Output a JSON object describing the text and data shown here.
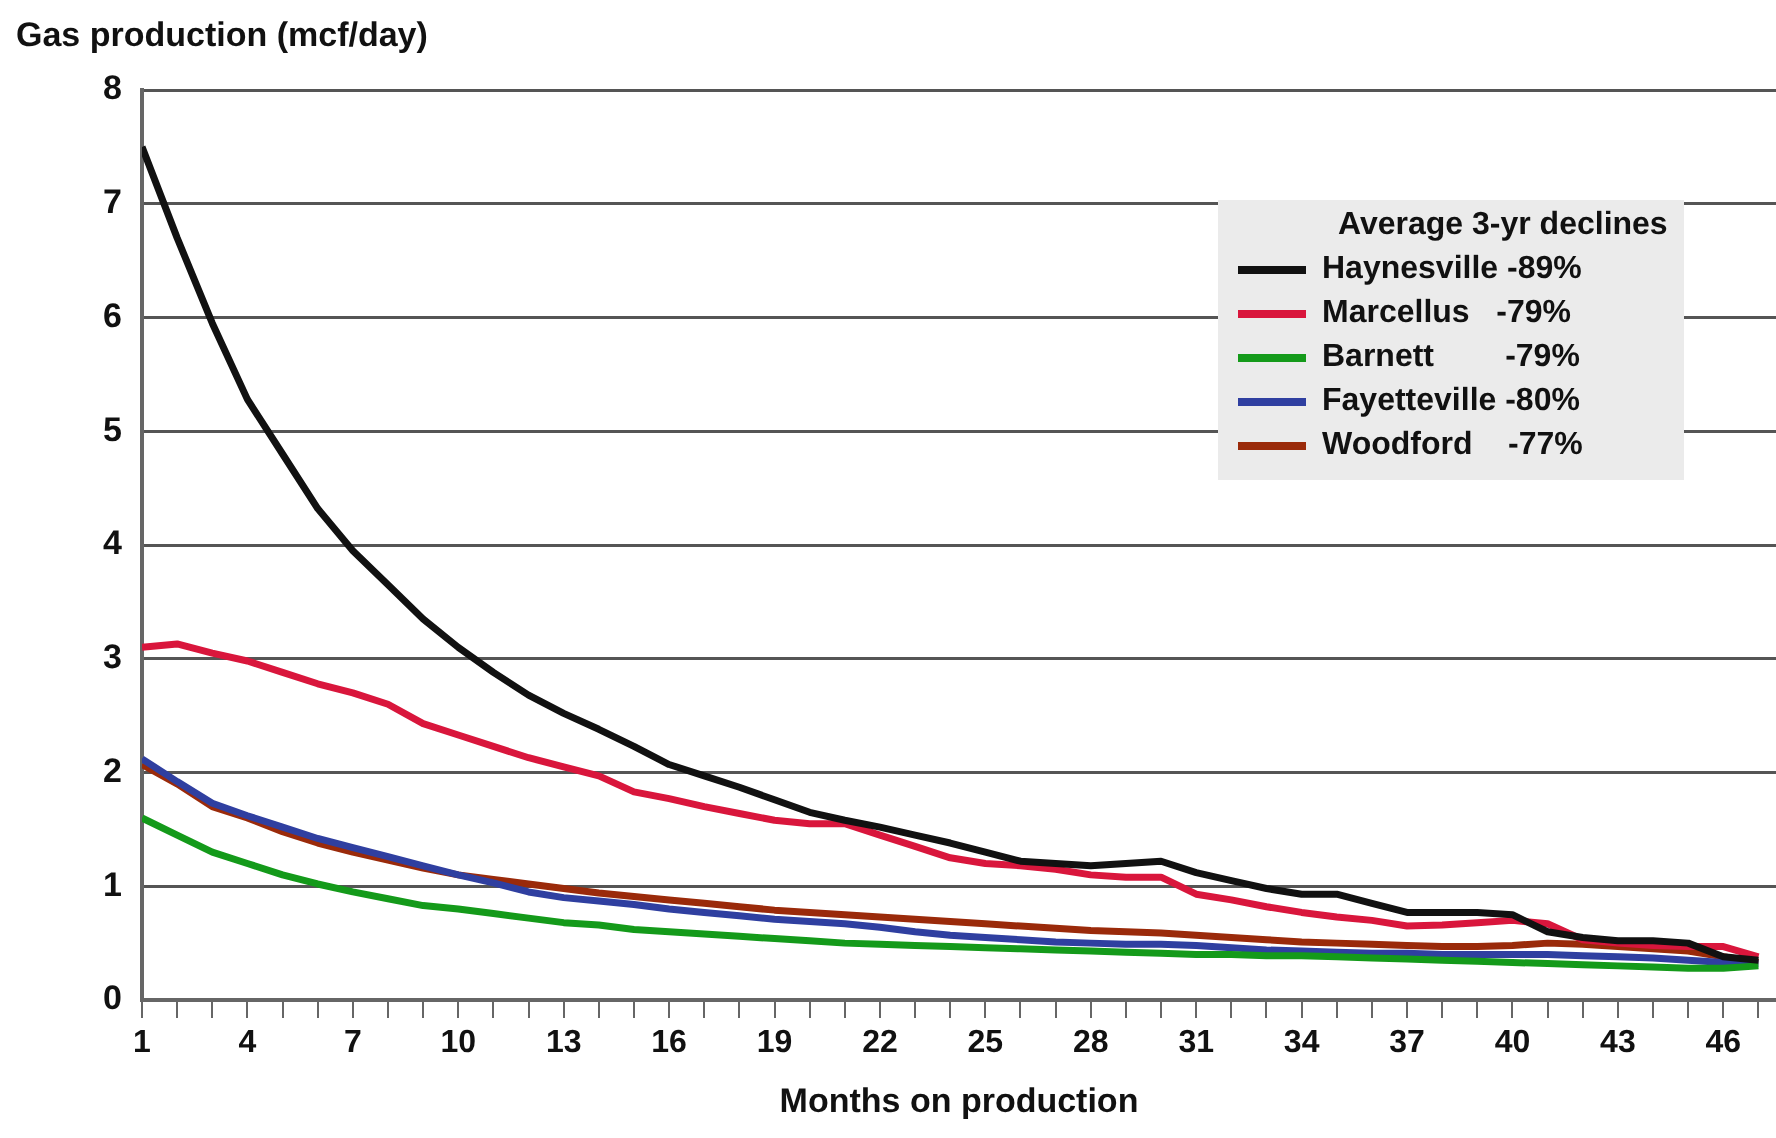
{
  "chart_data": {
    "type": "line",
    "ylabel": "Gas production (mcf/day)",
    "xlabel": "Months on production",
    "legend_title": "Average 3-yr declines",
    "legend": "top right",
    "grid": "y",
    "line_style": "solid",
    "marker": "none",
    "x": [
      1,
      2,
      3,
      4,
      5,
      6,
      7,
      8,
      9,
      10,
      11,
      12,
      13,
      14,
      15,
      16,
      17,
      18,
      19,
      20,
      21,
      22,
      23,
      24,
      25,
      26,
      27,
      28,
      29,
      30,
      31,
      32,
      33,
      34,
      35,
      36,
      37,
      38,
      39,
      40,
      41,
      42,
      43,
      44,
      45,
      46,
      47
    ],
    "xlim": [
      1,
      47.5
    ],
    "xticks": [
      1,
      {
        "value": 2,
        "label": null
      },
      {
        "value": 3,
        "label": null
      },
      4,
      {
        "value": 5,
        "label": null
      },
      {
        "value": 6,
        "label": null
      },
      7,
      {
        "value": 8,
        "label": null
      },
      {
        "value": 9,
        "label": null
      },
      10,
      {
        "value": 11,
        "label": null
      },
      {
        "value": 12,
        "label": null
      },
      13,
      {
        "value": 14,
        "label": null
      },
      {
        "value": 15,
        "label": null
      },
      16,
      {
        "value": 17,
        "label": null
      },
      {
        "value": 18,
        "label": null
      },
      19,
      {
        "value": 20,
        "label": null
      },
      {
        "value": 21,
        "label": null
      },
      22,
      {
        "value": 23,
        "label": null
      },
      {
        "value": 24,
        "label": null
      },
      25,
      {
        "value": 26,
        "label": null
      },
      {
        "value": 27,
        "label": null
      },
      28,
      {
        "value": 29,
        "label": null
      },
      {
        "value": 30,
        "label": null
      },
      31,
      {
        "value": 32,
        "label": null
      },
      {
        "value": 33,
        "label": null
      },
      34,
      {
        "value": 35,
        "label": null
      },
      {
        "value": 36,
        "label": null
      },
      37,
      {
        "value": 38,
        "label": null
      },
      {
        "value": 39,
        "label": null
      },
      40,
      {
        "value": 41,
        "label": null
      },
      {
        "value": 42,
        "label": null
      },
      43,
      {
        "value": 44,
        "label": null
      },
      {
        "value": 45,
        "label": null
      },
      46,
      {
        "value": 47,
        "label": null
      }
    ],
    "ylim": [
      0,
      8
    ],
    "yticks": [
      0,
      1,
      2,
      3,
      4,
      5,
      6,
      7,
      8
    ],
    "series": [
      {
        "name": "Haynesville -89%",
        "color": "#111111",
        "values": [
          7.5,
          6.7,
          5.95,
          5.28,
          4.8,
          4.32,
          3.95,
          3.65,
          3.35,
          3.1,
          2.88,
          2.68,
          2.52,
          2.38,
          2.23,
          2.07,
          1.97,
          1.87,
          1.76,
          1.65,
          1.58,
          1.52,
          1.45,
          1.38,
          1.3,
          1.22,
          1.2,
          1.18,
          1.2,
          1.22,
          1.12,
          1.05,
          0.98,
          0.93,
          0.93,
          0.85,
          0.77,
          0.77,
          0.77,
          0.75,
          0.6,
          0.55,
          0.52,
          0.52,
          0.5,
          0.38,
          0.35
        ]
      },
      {
        "name": "Marcellus   -79%",
        "color": "#d9163c",
        "values": [
          3.1,
          3.13,
          3.05,
          2.98,
          2.88,
          2.78,
          2.7,
          2.6,
          2.43,
          2.33,
          2.23,
          2.13,
          2.05,
          1.97,
          1.83,
          1.77,
          1.7,
          1.64,
          1.58,
          1.55,
          1.55,
          1.45,
          1.35,
          1.25,
          1.2,
          1.18,
          1.15,
          1.1,
          1.08,
          1.08,
          0.93,
          0.88,
          0.82,
          0.77,
          0.73,
          0.7,
          0.65,
          0.66,
          0.68,
          0.7,
          0.67,
          0.53,
          0.5,
          0.48,
          0.47,
          0.47,
          0.38
        ]
      },
      {
        "name": "Barnett        -79%",
        "color": "#149a1a",
        "values": [
          1.6,
          1.45,
          1.3,
          1.2,
          1.1,
          1.02,
          0.95,
          0.89,
          0.83,
          0.8,
          0.76,
          0.72,
          0.68,
          0.66,
          0.62,
          0.6,
          0.58,
          0.56,
          0.54,
          0.52,
          0.5,
          0.49,
          0.48,
          0.47,
          0.46,
          0.45,
          0.44,
          0.43,
          0.42,
          0.41,
          0.4,
          0.4,
          0.39,
          0.39,
          0.38,
          0.37,
          0.36,
          0.35,
          0.34,
          0.33,
          0.32,
          0.31,
          0.3,
          0.29,
          0.28,
          0.28,
          0.3
        ]
      },
      {
        "name": "Fayetteville -80%",
        "color": "#2f3fa0",
        "values": [
          2.12,
          1.92,
          1.73,
          1.62,
          1.52,
          1.42,
          1.34,
          1.26,
          1.18,
          1.1,
          1.03,
          0.95,
          0.9,
          0.87,
          0.84,
          0.8,
          0.77,
          0.74,
          0.71,
          0.69,
          0.67,
          0.64,
          0.6,
          0.57,
          0.55,
          0.53,
          0.51,
          0.5,
          0.49,
          0.49,
          0.48,
          0.46,
          0.44,
          0.43,
          0.42,
          0.41,
          0.41,
          0.4,
          0.4,
          0.4,
          0.4,
          0.39,
          0.38,
          0.37,
          0.35,
          0.33,
          0.32
        ]
      },
      {
        "name": "Woodford    -77%",
        "color": "#9a2a0a",
        "values": [
          2.07,
          1.9,
          1.7,
          1.6,
          1.48,
          1.38,
          1.3,
          1.23,
          1.16,
          1.1,
          1.06,
          1.02,
          0.98,
          0.94,
          0.91,
          0.88,
          0.85,
          0.82,
          0.79,
          0.77,
          0.75,
          0.73,
          0.71,
          0.69,
          0.67,
          0.65,
          0.63,
          0.61,
          0.6,
          0.59,
          0.57,
          0.55,
          0.53,
          0.51,
          0.5,
          0.49,
          0.48,
          0.47,
          0.47,
          0.48,
          0.5,
          0.49,
          0.47,
          0.45,
          0.43,
          0.38,
          0.33
        ]
      }
    ]
  }
}
